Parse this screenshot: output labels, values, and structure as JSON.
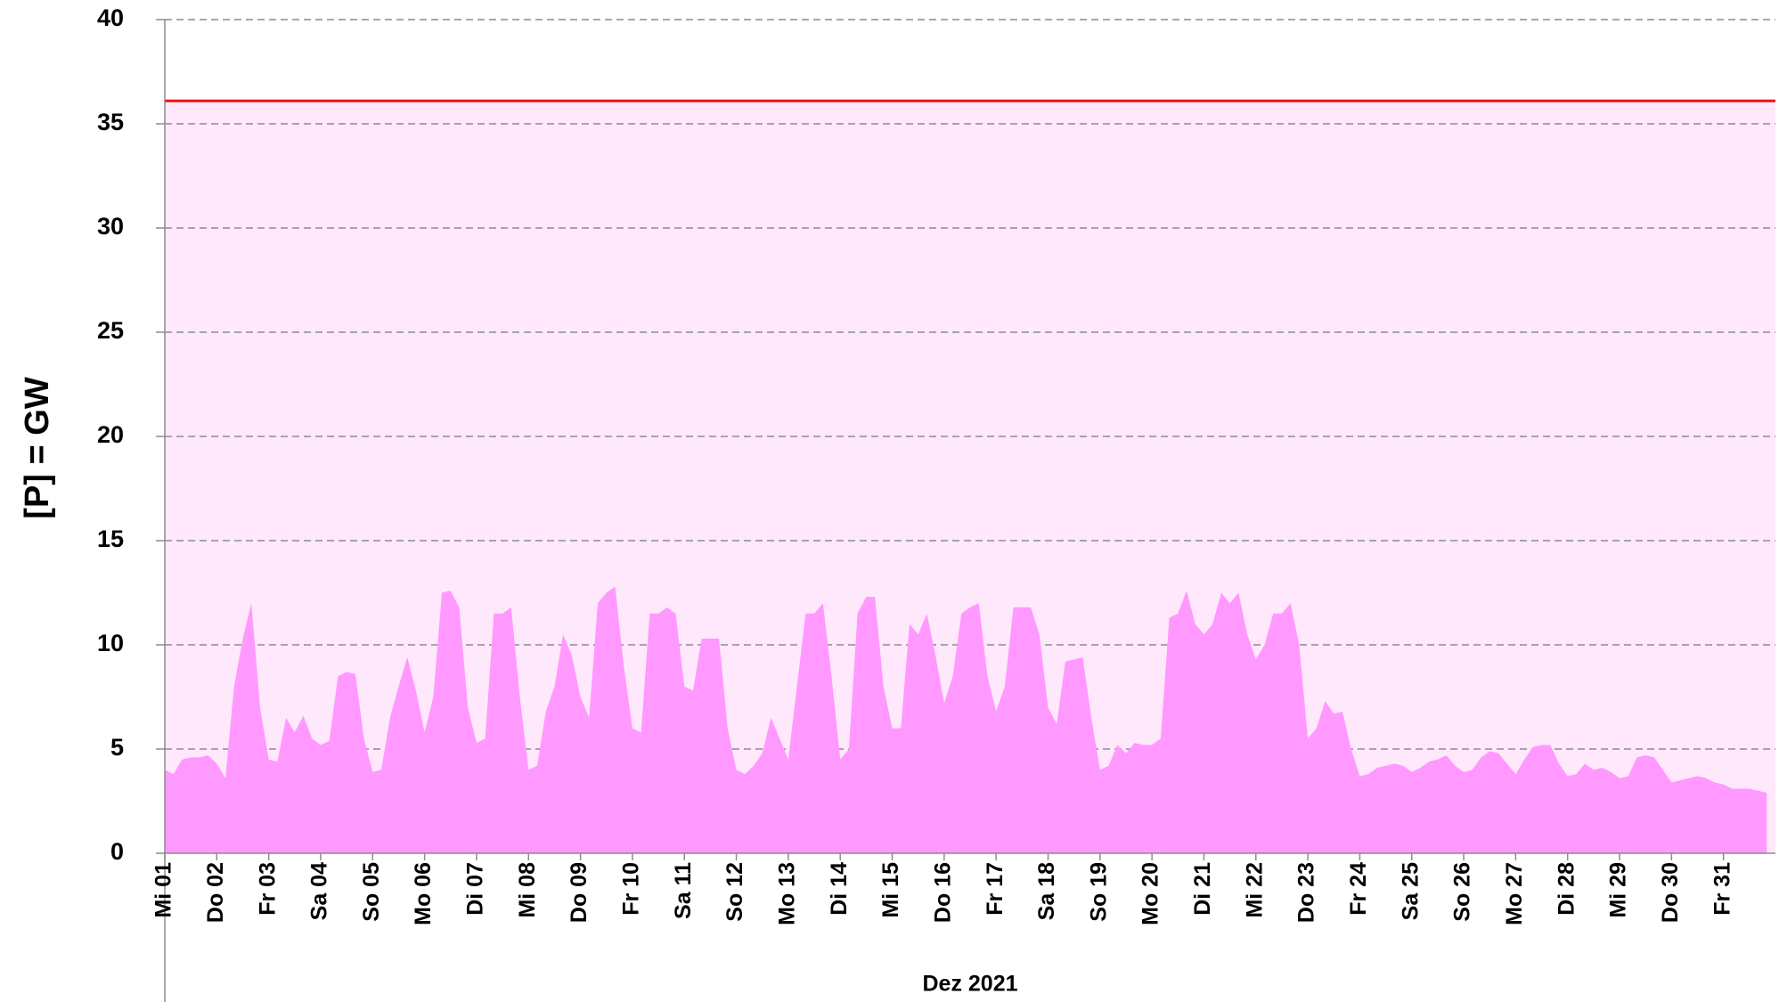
{
  "chart_data": {
    "type": "area",
    "ylabel": "[P]  = GW",
    "xlabel": "Dez 2021",
    "xlim": [
      0,
      744
    ],
    "xticks": [
      {
        "value": 0,
        "label": "Mi 01"
      },
      {
        "value": 24,
        "label": "Do 02"
      },
      {
        "value": 48,
        "label": "Fr 03"
      },
      {
        "value": 72,
        "label": "Sa 04"
      },
      {
        "value": 96,
        "label": "So 05"
      },
      {
        "value": 120,
        "label": "Mo 06"
      },
      {
        "value": 144,
        "label": "Di 07"
      },
      {
        "value": 168,
        "label": "Mi 08"
      },
      {
        "value": 192,
        "label": "Do 09"
      },
      {
        "value": 216,
        "label": "Fr 10"
      },
      {
        "value": 240,
        "label": "Sa 11"
      },
      {
        "value": 264,
        "label": "So 12"
      },
      {
        "value": 288,
        "label": "Mo 13"
      },
      {
        "value": 312,
        "label": "Di 14"
      },
      {
        "value": 336,
        "label": "Mi 15"
      },
      {
        "value": 360,
        "label": "Do 16"
      },
      {
        "value": 384,
        "label": "Fr 17"
      },
      {
        "value": 408,
        "label": "Sa 18"
      },
      {
        "value": 432,
        "label": "So 19"
      },
      {
        "value": 456,
        "label": "Mo 20"
      },
      {
        "value": 480,
        "label": "Di 21"
      },
      {
        "value": 504,
        "label": "Mi 22"
      },
      {
        "value": 528,
        "label": "Do 23"
      },
      {
        "value": 552,
        "label": "Fr 24"
      },
      {
        "value": 576,
        "label": "Sa 25"
      },
      {
        "value": 600,
        "label": "So 26"
      },
      {
        "value": 624,
        "label": "Mo 27"
      },
      {
        "value": 648,
        "label": "Di 28"
      },
      {
        "value": 672,
        "label": "Mi 29"
      },
      {
        "value": 696,
        "label": "Do 30"
      },
      {
        "value": 720,
        "label": "Fr 31"
      }
    ],
    "ylim": [
      0,
      40
    ],
    "yticks": [
      0,
      5,
      10,
      15,
      20,
      25,
      30,
      35,
      40
    ],
    "grid": true,
    "background_color": "#ffe8fc",
    "reference_line": {
      "value": 36.1,
      "color": "#ee1111"
    },
    "x": [
      0,
      4,
      8,
      12,
      16,
      20,
      24,
      28,
      32,
      36,
      40,
      44,
      48,
      52,
      56,
      60,
      64,
      68,
      72,
      76,
      80,
      84,
      88,
      92,
      96,
      100,
      104,
      108,
      112,
      116,
      120,
      124,
      128,
      132,
      136,
      140,
      144,
      148,
      152,
      156,
      160,
      164,
      168,
      172,
      176,
      180,
      184,
      188,
      192,
      196,
      200,
      204,
      208,
      212,
      216,
      220,
      224,
      228,
      232,
      236,
      240,
      244,
      248,
      252,
      256,
      260,
      264,
      268,
      272,
      276,
      280,
      284,
      288,
      292,
      296,
      300,
      304,
      308,
      312,
      316,
      320,
      324,
      328,
      332,
      336,
      340,
      344,
      348,
      352,
      356,
      360,
      364,
      368,
      372,
      376,
      380,
      384,
      388,
      392,
      396,
      400,
      404,
      408,
      412,
      416,
      420,
      424,
      428,
      432,
      436,
      440,
      444,
      448,
      452,
      456,
      460,
      464,
      468,
      472,
      476,
      480,
      484,
      488,
      492,
      496,
      500,
      504,
      508,
      512,
      516,
      520,
      524,
      528,
      532,
      536,
      540,
      544,
      548,
      552,
      556,
      560,
      564,
      568,
      572,
      576,
      580,
      584,
      588,
      592,
      596,
      600,
      604,
      608,
      612,
      616,
      620,
      624,
      628,
      632,
      636,
      640,
      644,
      648,
      652,
      656,
      660,
      664,
      668,
      672,
      676,
      680,
      684,
      688,
      692,
      696,
      700,
      704,
      708,
      712,
      716,
      720,
      724,
      728,
      732,
      736,
      740
    ],
    "series": [
      {
        "color": "#ff99ff",
        "values": [
          4.0,
          3.8,
          4.5,
          4.6,
          4.6,
          4.7,
          4.3,
          3.6,
          8.0,
          10.3,
          12.0,
          7.0,
          4.5,
          4.4,
          6.5,
          5.8,
          6.6,
          5.5,
          5.2,
          5.4,
          8.5,
          8.7,
          8.6,
          5.5,
          3.9,
          4.0,
          6.5,
          8.0,
          9.4,
          7.8,
          5.8,
          7.5,
          12.5,
          12.6,
          11.8,
          7.0,
          5.3,
          5.5,
          11.5,
          11.5,
          11.8,
          7.5,
          4.0,
          4.2,
          6.8,
          8.0,
          10.5,
          9.5,
          7.5,
          6.5,
          12.0,
          12.5,
          12.8,
          9.0,
          6.0,
          5.8,
          11.5,
          11.5,
          11.8,
          11.5,
          8.0,
          7.8,
          10.3,
          10.3,
          10.3,
          6.0,
          4.0,
          3.8,
          4.2,
          4.8,
          6.5,
          5.5,
          4.5,
          8.0,
          11.5,
          11.5,
          12.0,
          8.5,
          4.5,
          5.0,
          11.5,
          12.3,
          12.3,
          8.0,
          6.0,
          6.0,
          11.0,
          10.5,
          11.5,
          9.5,
          7.2,
          8.5,
          11.5,
          11.8,
          12.0,
          8.5,
          6.8,
          8.0,
          11.8,
          11.8,
          11.8,
          10.5,
          7.0,
          6.2,
          9.2,
          9.3,
          9.4,
          6.5,
          4.0,
          4.2,
          5.2,
          4.8,
          5.3,
          5.2,
          5.2,
          5.5,
          11.3,
          11.5,
          12.6,
          11.0,
          10.5,
          11.0,
          12.5,
          12.0,
          12.5,
          10.5,
          9.3,
          10.0,
          11.5,
          11.5,
          12.0,
          10.0,
          5.5,
          6.0,
          7.3,
          6.7,
          6.8,
          5.0,
          3.7,
          3.8,
          4.1,
          4.2,
          4.3,
          4.2,
          3.9,
          4.1,
          4.4,
          4.5,
          4.7,
          4.2,
          3.9,
          4.0,
          4.6,
          4.9,
          4.8,
          4.3,
          3.8,
          4.5,
          5.1,
          5.2,
          5.2,
          4.3,
          3.7,
          3.8,
          4.3,
          4.0,
          4.1,
          3.9,
          3.6,
          3.7,
          4.6,
          4.7,
          4.6,
          4.0,
          3.4,
          3.5,
          3.6,
          3.7,
          3.6,
          3.4,
          3.3,
          3.1,
          3.1,
          3.1,
          3.0,
          2.9
        ]
      }
    ]
  }
}
